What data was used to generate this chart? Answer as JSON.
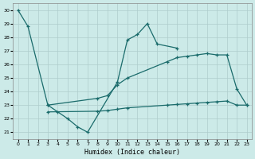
{
  "xlabel": "Humidex (Indice chaleur)",
  "xlim": [
    -0.5,
    23.5
  ],
  "ylim": [
    20.5,
    30.5
  ],
  "yticks": [
    21,
    22,
    23,
    24,
    25,
    26,
    27,
    28,
    29,
    30
  ],
  "xticks": [
    0,
    1,
    2,
    3,
    4,
    5,
    6,
    7,
    8,
    9,
    10,
    11,
    12,
    13,
    14,
    15,
    16,
    17,
    18,
    19,
    20,
    21,
    22,
    23
  ],
  "bg_color": "#cceae8",
  "grid_color": "#aecdcc",
  "line_color": "#1a6b6b",
  "series": [
    {
      "x": [
        0,
        1,
        3,
        4,
        5,
        6,
        7,
        10,
        11,
        12,
        13,
        14,
        16
      ],
      "y": [
        30.0,
        28.8,
        23.0,
        22.5,
        22.0,
        21.4,
        21.0,
        24.7,
        27.8,
        28.2,
        29.0,
        27.5,
        27.2
      ]
    },
    {
      "x": [
        3,
        8,
        9,
        10,
        11,
        15,
        16,
        17,
        18,
        19,
        20,
        21,
        22,
        23
      ],
      "y": [
        23.0,
        23.5,
        23.7,
        24.5,
        25.0,
        26.2,
        26.5,
        26.6,
        26.7,
        26.8,
        26.7,
        26.7,
        24.2,
        23.0
      ]
    },
    {
      "x": [
        3,
        8,
        9,
        10,
        11,
        15,
        16,
        17,
        18,
        19,
        20,
        21,
        22,
        23
      ],
      "y": [
        22.5,
        22.55,
        22.6,
        22.7,
        22.8,
        23.0,
        23.05,
        23.1,
        23.15,
        23.2,
        23.25,
        23.3,
        23.0,
        23.0
      ]
    }
  ]
}
